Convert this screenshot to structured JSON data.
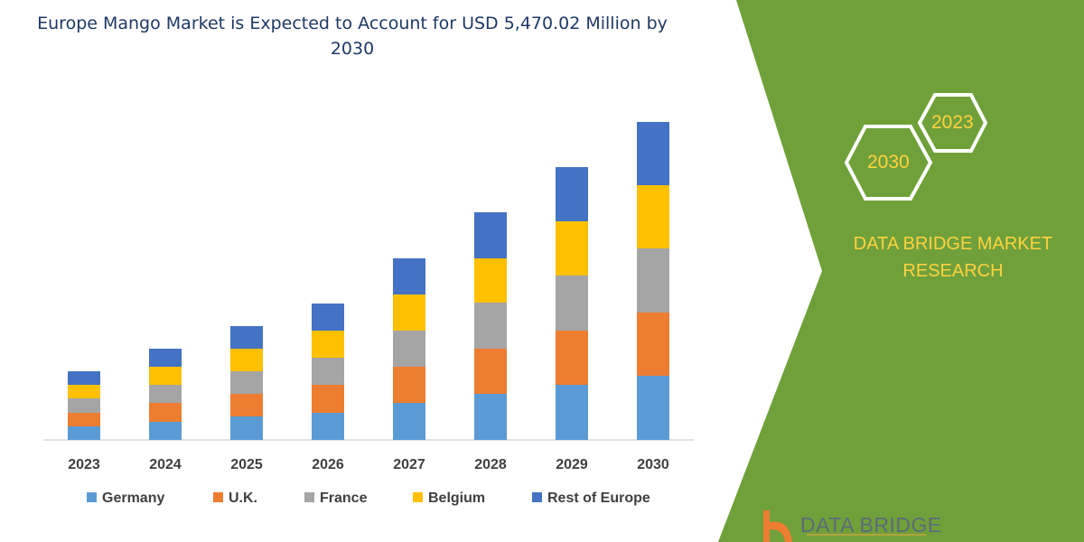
{
  "title": "Europe Mango Market is Expected to Account for USD 5,470.02 Million by 2030",
  "brand": {
    "name": "DATA BRIDGE MARKET RESEARCH",
    "hex_left": "2030",
    "hex_right": "2023",
    "logo_text": "DATA BRIDGE",
    "panel_color": "#70a03a",
    "text_color": "#ffd23f"
  },
  "chart_data": {
    "type": "bar",
    "stacked": true,
    "title": "Europe Mango Market is Expected to Account for USD 5,470.02 Million by 2030",
    "xlabel": "",
    "ylabel": "",
    "y_axis_shown": false,
    "grid": false,
    "legend_position": "bottom",
    "categories": [
      "2023",
      "2024",
      "2025",
      "2026",
      "2027",
      "2028",
      "2029",
      "2030"
    ],
    "series": [
      {
        "name": "Germany",
        "color": "#5b9bd5",
        "values": [
          15,
          20,
          26,
          30,
          41,
          51,
          61,
          71
        ]
      },
      {
        "name": "U.K.",
        "color": "#ed7d31",
        "values": [
          15,
          21,
          25,
          31,
          40,
          50,
          60,
          70
        ]
      },
      {
        "name": "France",
        "color": "#a5a5a5",
        "values": [
          16,
          20,
          25,
          30,
          40,
          51,
          61,
          71
        ]
      },
      {
        "name": "Belgium",
        "color": "#ffc000",
        "values": [
          15,
          20,
          25,
          30,
          40,
          49,
          60,
          70
        ]
      },
      {
        "name": "Rest of Europe",
        "color": "#4472c4",
        "values": [
          15,
          20,
          25,
          30,
          40,
          51,
          60,
          70
        ]
      }
    ]
  }
}
